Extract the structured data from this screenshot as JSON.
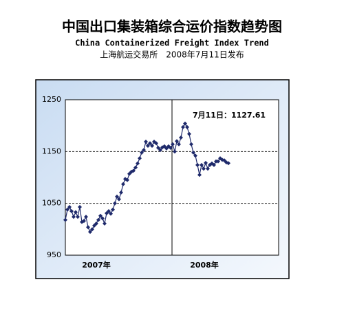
{
  "chart_data": {
    "type": "line",
    "title": "中国出口集装箱综合运价指数趋势图",
    "subtitle": "China Containerized Freight Index Trend",
    "source": "上海航运交易所　2008年7月11日发布",
    "annotation": "7月11日：1127.61",
    "x_labels": [
      "2007年",
      "2008年"
    ],
    "series": [
      {
        "color": "#1f2a6b",
        "values": [
          1018,
          1038,
          1043,
          1035,
          1024,
          1033,
          1024,
          1043,
          1014,
          1016,
          1024,
          1004,
          995,
          1000,
          1007,
          1011,
          1018,
          1026,
          1021,
          1011,
          1031,
          1035,
          1030,
          1038,
          1050,
          1063,
          1058,
          1071,
          1087,
          1097,
          1095,
          1107,
          1111,
          1113,
          1119,
          1127,
          1137,
          1148,
          1153,
          1169,
          1161,
          1166,
          1161,
          1169,
          1166,
          1157,
          1153,
          1158,
          1160,
          1156,
          1160,
          1157,
          1164,
          1150,
          1170,
          1164,
          1177,
          1197,
          1204,
          1197,
          1184,
          1164,
          1148,
          1142,
          1124,
          1105,
          1124,
          1117,
          1128,
          1117,
          1124,
          1127,
          1124,
          1131,
          1131,
          1137,
          1134,
          1133,
          1129,
          1127.61
        ]
      }
    ],
    "ylim": [
      950,
      1250
    ],
    "yticks": [
      950,
      1050,
      1150,
      1250
    ],
    "grid": true
  }
}
